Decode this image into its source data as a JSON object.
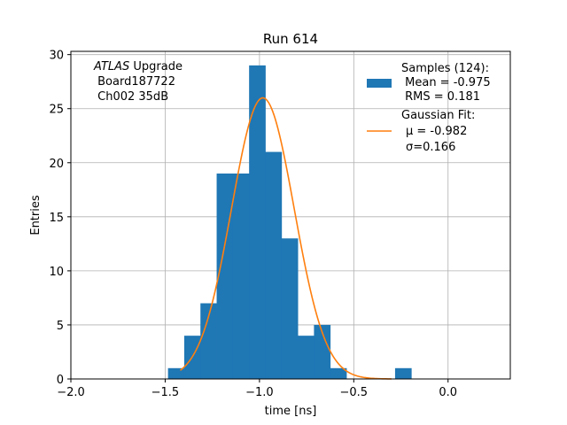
{
  "chart_data": {
    "type": "bar",
    "title": "Run 614",
    "xlabel": "time [ns]",
    "ylabel": "Entries",
    "xlim": [
      -2.0,
      0.33
    ],
    "ylim": [
      0,
      30.3
    ],
    "xticks": [
      -2.0,
      -1.5,
      -1.0,
      -0.5,
      0.0
    ],
    "xtick_labels": [
      "−2.0",
      "−1.5",
      "−1.0",
      "−0.5",
      "0.0"
    ],
    "yticks": [
      0,
      5,
      10,
      15,
      20,
      25,
      30
    ],
    "ytick_labels": [
      "0",
      "5",
      "10",
      "15",
      "20",
      "25",
      "30"
    ],
    "grid": true,
    "bins": [
      {
        "x0": -1.485,
        "x1": -1.399,
        "value": 1
      },
      {
        "x0": -1.399,
        "x1": -1.313,
        "value": 4
      },
      {
        "x0": -1.313,
        "x1": -1.227,
        "value": 7
      },
      {
        "x0": -1.227,
        "x1": -1.141,
        "value": 19
      },
      {
        "x0": -1.141,
        "x1": -1.055,
        "value": 19
      },
      {
        "x0": -1.055,
        "x1": -0.969,
        "value": 29
      },
      {
        "x0": -0.969,
        "x1": -0.883,
        "value": 21
      },
      {
        "x0": -0.883,
        "x1": -0.797,
        "value": 13
      },
      {
        "x0": -0.797,
        "x1": -0.711,
        "value": 4
      },
      {
        "x0": -0.711,
        "x1": -0.625,
        "value": 5
      },
      {
        "x0": -0.625,
        "x1": -0.539,
        "value": 1
      },
      {
        "x0": -0.539,
        "x1": -0.453,
        "value": 0
      },
      {
        "x0": -0.453,
        "x1": -0.367,
        "value": 0
      },
      {
        "x0": -0.367,
        "x1": -0.281,
        "value": 0
      },
      {
        "x0": -0.281,
        "x1": -0.195,
        "value": 1
      }
    ],
    "gaussian": {
      "amplitude": 26,
      "mean": -0.982,
      "sigma": 0.166,
      "x_range": [
        -1.42,
        -0.3
      ]
    },
    "colors": {
      "bars": "#1f77b4",
      "fit": "#ff7f0e",
      "grid": "#b0b0b0"
    },
    "legend": {
      "location": "upper right",
      "samples_lines": [
        "Samples (124):",
        " Mean = -0.975",
        " RMS = 0.181"
      ],
      "fit_lines": [
        "Gaussian Fit:",
        "μ = -0.982",
        "σ=0.166"
      ]
    },
    "annotation": {
      "experiment": "ATLAS",
      "experiment_suffix": " Upgrade",
      "line2": " Board187722",
      "line3": " Ch002 35dB"
    }
  }
}
